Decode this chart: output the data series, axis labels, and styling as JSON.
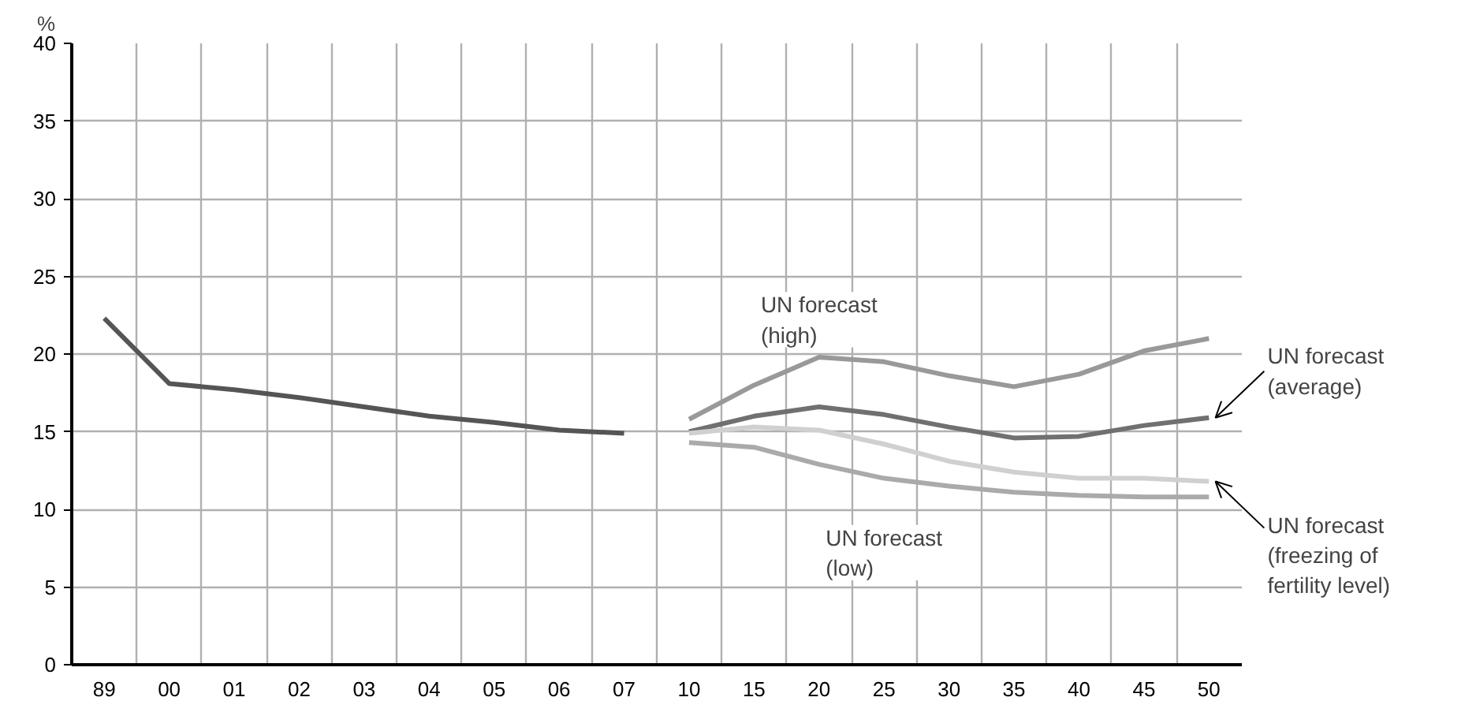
{
  "chart_data": {
    "type": "line",
    "ylabel": "%",
    "categories": [
      "89",
      "00",
      "01",
      "02",
      "03",
      "04",
      "05",
      "06",
      "07",
      "10",
      "15",
      "20",
      "25",
      "30",
      "35",
      "40",
      "45",
      "50"
    ],
    "series": [
      {
        "color": "#555555",
        "values": [
          22.3,
          18.1,
          17.7,
          17.2,
          16.6,
          16.0,
          15.6,
          15.1,
          14.9,
          null,
          null,
          null,
          null,
          null,
          null,
          null,
          null,
          null
        ]
      },
      {
        "name": "UN forecast\n(high)",
        "color": "#999999",
        "values": [
          null,
          null,
          null,
          null,
          null,
          null,
          null,
          null,
          null,
          15.8,
          18.0,
          19.8,
          19.5,
          18.6,
          17.9,
          18.7,
          20.2,
          21.0
        ]
      },
      {
        "name": "UN forecast\n(average)",
        "color": "#707070",
        "values": [
          null,
          null,
          null,
          null,
          null,
          null,
          null,
          null,
          null,
          15.0,
          16.0,
          16.6,
          16.1,
          15.3,
          14.6,
          14.7,
          15.4,
          15.9
        ]
      },
      {
        "name": "UN forecast\n(freezing of\nfertility level)",
        "color": "#d0d0d0",
        "values": [
          null,
          null,
          null,
          null,
          null,
          null,
          null,
          null,
          null,
          14.9,
          15.3,
          15.1,
          14.2,
          13.1,
          12.4,
          12.0,
          12.0,
          11.8
        ]
      },
      {
        "name": "UN forecast\n(low)",
        "color": "#aaaaaa",
        "values": [
          null,
          null,
          null,
          null,
          null,
          null,
          null,
          null,
          null,
          14.3,
          14.0,
          12.9,
          12.0,
          11.5,
          11.1,
          10.9,
          10.8,
          10.8
        ]
      }
    ],
    "ylim": [
      0,
      40
    ],
    "yticks": [
      0,
      5,
      10,
      15,
      20,
      25,
      30,
      35,
      40
    ],
    "grid": true,
    "marker": "none",
    "line_style": "solid"
  }
}
